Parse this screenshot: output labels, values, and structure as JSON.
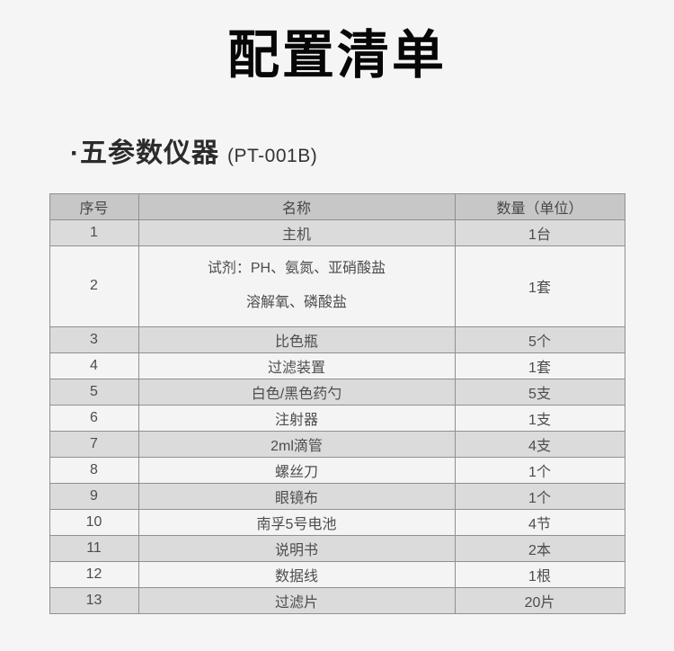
{
  "page": {
    "title": "配置清单"
  },
  "subtitle": {
    "name": "·五参数仪器",
    "model": "(PT-001B)"
  },
  "table": {
    "headers": [
      "序号",
      "名称",
      "数量（单位）"
    ],
    "rows": [
      {
        "index": "1",
        "name": "主机",
        "qty": "1台"
      },
      {
        "index": "2",
        "name": "试剂：PH、氨氮、亚硝酸盐\n溶解氧、磷酸盐",
        "qty": "1套"
      },
      {
        "index": "3",
        "name": "比色瓶",
        "qty": "5个"
      },
      {
        "index": "4",
        "name": "过滤装置",
        "qty": "1套"
      },
      {
        "index": "5",
        "name": "白色/黑色药勺",
        "qty": "5支"
      },
      {
        "index": "6",
        "name": "注射器",
        "qty": "1支"
      },
      {
        "index": "7",
        "name": "2ml滴管",
        "qty": "4支"
      },
      {
        "index": "8",
        "name": "螺丝刀",
        "qty": "1个"
      },
      {
        "index": "9",
        "name": "眼镜布",
        "qty": "1个"
      },
      {
        "index": "10",
        "name": "南孚5号电池",
        "qty": "4节"
      },
      {
        "index": "11",
        "name": "说明书",
        "qty": "2本"
      },
      {
        "index": "12",
        "name": "数据线",
        "qty": "1根"
      },
      {
        "index": "13",
        "name": "过滤片",
        "qty": "20片"
      }
    ]
  },
  "colors": {
    "page_bg": "#f5f5f5",
    "header_bg": "#c7c7c7",
    "odd_row_bg": "#dbdbdb",
    "even_row_bg": "#f4f4f4",
    "border": "#909090",
    "body_text": "#4d4d4d",
    "title_text": "#070707"
  }
}
